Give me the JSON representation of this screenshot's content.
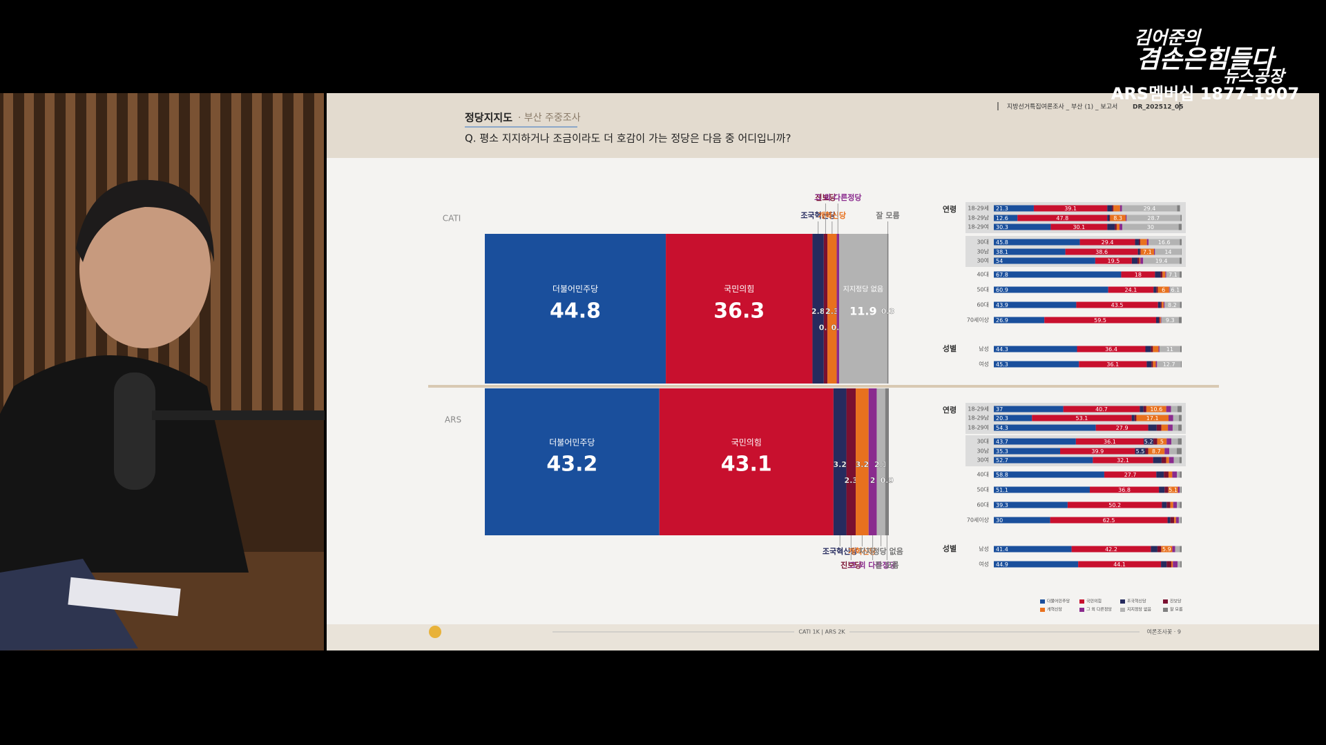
{
  "overlay": {
    "show_prefix": "김어준의",
    "show_title": "겸손은힘들다",
    "show_subtitle": "뉴스공장",
    "membership": "ARS멤버십 1877-1907"
  },
  "slide": {
    "title": "정당지지도",
    "subtitle": "· 부산 주중조사",
    "question": "Q. 평소 지지하거나 조금이라도 더 호감이 가는 정당은 다음 중 어디입니까?",
    "report": "지방선거특집여론조사 _ 부산 (1) _ 보고서",
    "code": "DR_202512_05",
    "sample": "CATI 1K | ARS 2K",
    "footer_brand": "여론조사꽃 · 9"
  },
  "chart_data": [
    {
      "type": "bar",
      "stacked": true,
      "orientation": "horizontal",
      "categories": [
        "CATI"
      ],
      "xlim": [
        0,
        100
      ],
      "series": [
        {
          "name": "더불어민주당",
          "color": "#1a4f9c",
          "values": [
            44.8
          ]
        },
        {
          "name": "국민의힘",
          "color": "#c8102e",
          "values": [
            36.3
          ]
        },
        {
          "name": "조국혁신당",
          "color": "#262b5e",
          "values": [
            2.8
          ]
        },
        {
          "name": "진보당",
          "color": "#7a1030",
          "values": [
            0.9
          ]
        },
        {
          "name": "개혁신당",
          "color": "#e8711e",
          "values": [
            2.3
          ]
        },
        {
          "name": "그 외 다른정당",
          "color": "#8a2b8e",
          "values": [
            0.6
          ]
        },
        {
          "name": "지지정당 없음",
          "color": "#b3b3b3",
          "values": [
            11.9
          ]
        },
        {
          "name": "잘 모름",
          "color": "#7f7f7f",
          "values": [
            0.3
          ]
        }
      ]
    },
    {
      "type": "bar",
      "stacked": true,
      "orientation": "horizontal",
      "categories": [
        "ARS"
      ],
      "xlim": [
        0,
        100
      ],
      "series": [
        {
          "name": "더불어민주당",
          "color": "#1a4f9c",
          "values": [
            43.2
          ]
        },
        {
          "name": "국민의힘",
          "color": "#c8102e",
          "values": [
            43.1
          ]
        },
        {
          "name": "조국혁신당",
          "color": "#262b5e",
          "values": [
            3.2
          ]
        },
        {
          "name": "진보당",
          "color": "#7a1030",
          "values": [
            2.3
          ]
        },
        {
          "name": "개혁신당",
          "color": "#e8711e",
          "values": [
            3.2
          ]
        },
        {
          "name": "그 외 다른정당",
          "color": "#8a2b8e",
          "values": [
            2.0
          ]
        },
        {
          "name": "지지정당 없음",
          "color": "#b3b3b3",
          "values": [
            2.1
          ]
        },
        {
          "name": "잘 모름",
          "color": "#7f7f7f",
          "values": [
            0.9
          ]
        }
      ]
    },
    {
      "type": "bar",
      "stacked": true,
      "orientation": "horizontal",
      "xlim": [
        0,
        100
      ],
      "group_labels": [
        "연령",
        "성별"
      ],
      "categories": [
        "18-29세",
        "18-29남",
        "18-29여",
        "30대",
        "30남",
        "30여",
        "40대",
        "50대",
        "60대",
        "70세이상",
        "남성",
        "여성"
      ],
      "series": [
        {
          "name": "더불어민주당",
          "color": "#1a4f9c",
          "values": [
            21.3,
            12.6,
            30.3,
            45.8,
            38.1,
            54.0,
            67.8,
            60.9,
            43.9,
            26.9,
            44.3,
            45.3
          ]
        },
        {
          "name": "국민의힘",
          "color": "#c8102e",
          "values": [
            39.1,
            47.8,
            30.1,
            29.4,
            38.6,
            19.5,
            18.0,
            24.1,
            43.5,
            59.5,
            36.4,
            36.1
          ]
        },
        {
          "name": "조국혁신당",
          "color": "#262b5e",
          "values": [
            2.5,
            1.0,
            4.0,
            2.0,
            1.0,
            3.0,
            3.0,
            1.5,
            1.5,
            1.5,
            3.0,
            2.5
          ]
        },
        {
          "name": "진보당",
          "color": "#7a1030",
          "values": [
            0.8,
            0.5,
            1.0,
            0.8,
            0.5,
            1.0,
            1.0,
            0.8,
            0.5,
            0.5,
            1.0,
            0.8
          ]
        },
        {
          "name": "개혁신당",
          "color": "#e8711e",
          "values": [
            3.5,
            8.3,
            1.5,
            3.5,
            7.1,
            0.5,
            1.5,
            6.0,
            1.0,
            0.5,
            3.0,
            1.5
          ]
        },
        {
          "name": "그 외 다른정당",
          "color": "#8a2b8e",
          "values": [
            1.0,
            0.5,
            1.5,
            0.9,
            0.5,
            1.5,
            0.5,
            0.3,
            0.5,
            0.3,
            0.5,
            0.7
          ]
        },
        {
          "name": "지지정당 없음",
          "color": "#b3b3b3",
          "values": [
            29.4,
            28.7,
            30.0,
            16.6,
            14.0,
            19.4,
            7.1,
            6.1,
            8.2,
            9.3,
            11.0,
            12.7
          ]
        },
        {
          "name": "잘 모름",
          "color": "#7f7f7f",
          "values": [
            1.5,
            0.6,
            1.6,
            1.0,
            0.2,
            1.1,
            1.1,
            0.3,
            0.9,
            1.5,
            0.8,
            0.4
          ]
        }
      ]
    },
    {
      "type": "bar",
      "stacked": true,
      "orientation": "horizontal",
      "xlim": [
        0,
        100
      ],
      "group_labels": [
        "연령",
        "성별"
      ],
      "categories": [
        "18-29세",
        "18-29남",
        "18-29여",
        "30대",
        "30남",
        "30여",
        "40대",
        "50대",
        "60대",
        "70세이상",
        "남성",
        "여성"
      ],
      "series": [
        {
          "name": "더불어민주당",
          "color": "#1a4f9c",
          "values": [
            37.0,
            20.3,
            54.3,
            43.7,
            35.3,
            52.7,
            58.8,
            51.1,
            39.3,
            30.0,
            41.4,
            44.9
          ]
        },
        {
          "name": "국민의힘",
          "color": "#c8102e",
          "values": [
            40.7,
            53.1,
            27.9,
            36.1,
            39.9,
            32.1,
            27.7,
            36.8,
            50.2,
            62.5,
            42.2,
            44.1
          ]
        },
        {
          "name": "조국혁신당",
          "color": "#262b5e",
          "values": [
            2.0,
            1.5,
            4.5,
            5.2,
            5.5,
            4.5,
            4.0,
            3.0,
            2.5,
            1.5,
            3.5,
            3.0
          ]
        },
        {
          "name": "진보당",
          "color": "#7a1030",
          "values": [
            1.5,
            1.0,
            2.5,
            2.0,
            1.5,
            2.5,
            2.5,
            2.0,
            2.0,
            2.0,
            2.0,
            2.5
          ]
        },
        {
          "name": "개혁신당",
          "color": "#e8711e",
          "values": [
            10.6,
            17.1,
            3.5,
            5.0,
            8.7,
            1.5,
            2.0,
            5.1,
            1.5,
            1.0,
            5.9,
            0.8
          ]
        },
        {
          "name": "그 외 다른정당",
          "color": "#8a2b8e",
          "values": [
            2.5,
            2.5,
            2.5,
            2.5,
            2.5,
            2.5,
            2.5,
            1.0,
            2.0,
            1.5,
            1.5,
            2.5
          ]
        },
        {
          "name": "지지정당 없음",
          "color": "#b3b3b3",
          "values": [
            3.5,
            3.0,
            3.0,
            3.5,
            4.0,
            3.0,
            1.5,
            0.5,
            1.5,
            1.0,
            2.5,
            1.5
          ]
        },
        {
          "name": "잘 모름",
          "color": "#7f7f7f",
          "values": [
            2.2,
            1.5,
            1.8,
            2.0,
            2.6,
            1.2,
            1.0,
            0.5,
            1.0,
            0.5,
            1.0,
            0.7
          ]
        }
      ]
    }
  ]
}
